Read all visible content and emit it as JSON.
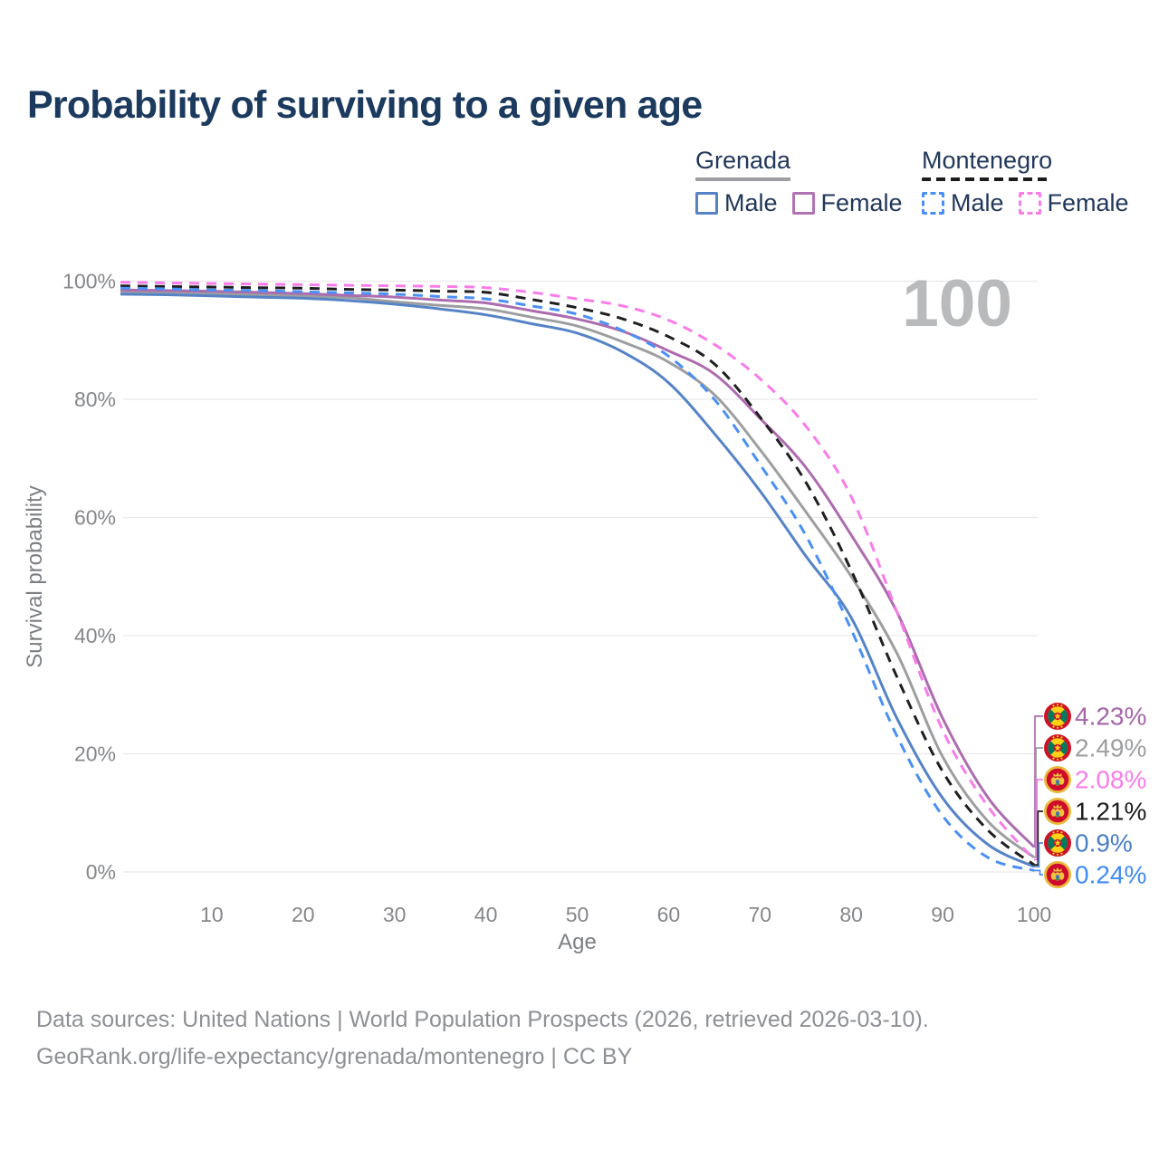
{
  "title": "Probability of surviving to a given age",
  "watermark": "100",
  "legend": {
    "groups": [
      {
        "label": "Grenada",
        "line_style": "solid",
        "line_color": "#9d9ea0",
        "items": [
          {
            "label": "Male",
            "color": "#5583c6",
            "line_style": "solid"
          },
          {
            "label": "Female",
            "color": "#b273b3",
            "line_style": "solid"
          }
        ]
      },
      {
        "label": "Montenegro",
        "line_style": "dashed",
        "line_color": "#1c1c1c",
        "items": [
          {
            "label": "Male",
            "color": "#4a90f4",
            "line_style": "dashed"
          },
          {
            "label": "Female",
            "color": "#f97ce9",
            "line_style": "dashed"
          }
        ]
      }
    ]
  },
  "chart_data": {
    "type": "line",
    "title": "Probability of surviving to a given age",
    "xlabel": "Age",
    "ylabel": "Survival probability",
    "xlim": [
      0,
      100
    ],
    "ylim": [
      0,
      100
    ],
    "grid": true,
    "legend_position": "top-right",
    "x_tick_values": [
      10,
      20,
      30,
      40,
      50,
      60,
      70,
      80,
      90,
      100
    ],
    "x_tick_labels": [
      "10",
      "20",
      "30",
      "40",
      "50",
      "60",
      "70",
      "80",
      "90",
      "100"
    ],
    "y_tick_values": [
      0,
      20,
      40,
      60,
      80,
      100
    ],
    "y_tick_labels": [
      "0%",
      "20%",
      "40%",
      "60%",
      "80%",
      "100%"
    ],
    "ages": [
      0,
      5,
      10,
      15,
      20,
      25,
      30,
      35,
      40,
      45,
      50,
      55,
      60,
      65,
      70,
      75,
      80,
      85,
      90,
      95,
      100
    ],
    "series": [
      {
        "id": "grenada",
        "name": "Grenada",
        "color": "#9d9ea0",
        "dash": false,
        "flag": "grenada",
        "end_label": "2.49%",
        "end_label_color": "#9d9ea0",
        "values": [
          98.1,
          98.0,
          97.9,
          97.7,
          97.5,
          97.2,
          96.5,
          95.9,
          95.3,
          93.9,
          92.4,
          89.7,
          86.3,
          80.8,
          71.5,
          61.0,
          50.0,
          37.0,
          19.5,
          8.5,
          2.49
        ]
      },
      {
        "id": "grenada-male",
        "name": "Grenada Male",
        "color": "#5583c6",
        "dash": false,
        "flag": "grenada",
        "end_label": "0.9%",
        "end_label_color": "#4a7ec6",
        "values": [
          97.8,
          97.7,
          97.5,
          97.3,
          97.1,
          96.7,
          96.1,
          95.3,
          94.3,
          92.8,
          91.2,
          88.0,
          82.8,
          74.2,
          64.5,
          53.5,
          43.0,
          26.0,
          12.5,
          4.6,
          0.9
        ]
      },
      {
        "id": "grenada-female",
        "name": "Grenada Female",
        "color": "#ac6cae",
        "dash": false,
        "flag": "grenada",
        "end_label": "4.23%",
        "end_label_color": "#a565a8",
        "values": [
          98.5,
          98.4,
          98.3,
          98.1,
          97.9,
          97.6,
          97.3,
          96.8,
          96.3,
          95.0,
          93.6,
          91.5,
          88.2,
          84.3,
          76.8,
          68.5,
          57.0,
          44.0,
          26.0,
          12.5,
          4.23
        ]
      },
      {
        "id": "montenegro",
        "name": "Montenegro",
        "color": "#1f1f1f",
        "dash": true,
        "flag": "montenegro",
        "end_label": "1.21%",
        "end_label_color": "#1c1c1c",
        "values": [
          99.2,
          99.1,
          99.0,
          98.9,
          98.8,
          98.6,
          98.5,
          98.3,
          98.1,
          96.9,
          95.5,
          93.6,
          90.6,
          86.0,
          77.0,
          66.0,
          51.0,
          33.0,
          17.0,
          7.0,
          1.21
        ]
      },
      {
        "id": "montenegro-male",
        "name": "Montenegro Male",
        "color": "#4a90f4",
        "dash": true,
        "flag": "montenegro",
        "end_label": "0.24%",
        "end_label_color": "#3e8bf2",
        "values": [
          98.8,
          98.7,
          98.5,
          98.4,
          98.2,
          98.0,
          97.8,
          97.4,
          97.0,
          95.8,
          94.4,
          91.6,
          87.3,
          80.0,
          69.0,
          57.0,
          41.0,
          23.0,
          9.5,
          2.4,
          0.24
        ]
      },
      {
        "id": "montenegro-female",
        "name": "Montenegro Female",
        "color": "#f97ce9",
        "dash": true,
        "flag": "montenegro",
        "end_label": "2.08%",
        "end_label_color": "#f97ce9",
        "values": [
          99.8,
          99.7,
          99.6,
          99.5,
          99.4,
          99.3,
          99.2,
          99.1,
          98.9,
          98.1,
          97.0,
          95.8,
          93.4,
          89.3,
          83.5,
          75.5,
          63.5,
          44.0,
          24.0,
          11.0,
          2.08
        ]
      }
    ]
  },
  "footer": {
    "line1": "Data sources: United Nations | World Population Prospects (2026, retrieved 2026-03-10).",
    "line2": "GeoRank.org/life-expectancy/grenada/montenegro | CC BY"
  }
}
